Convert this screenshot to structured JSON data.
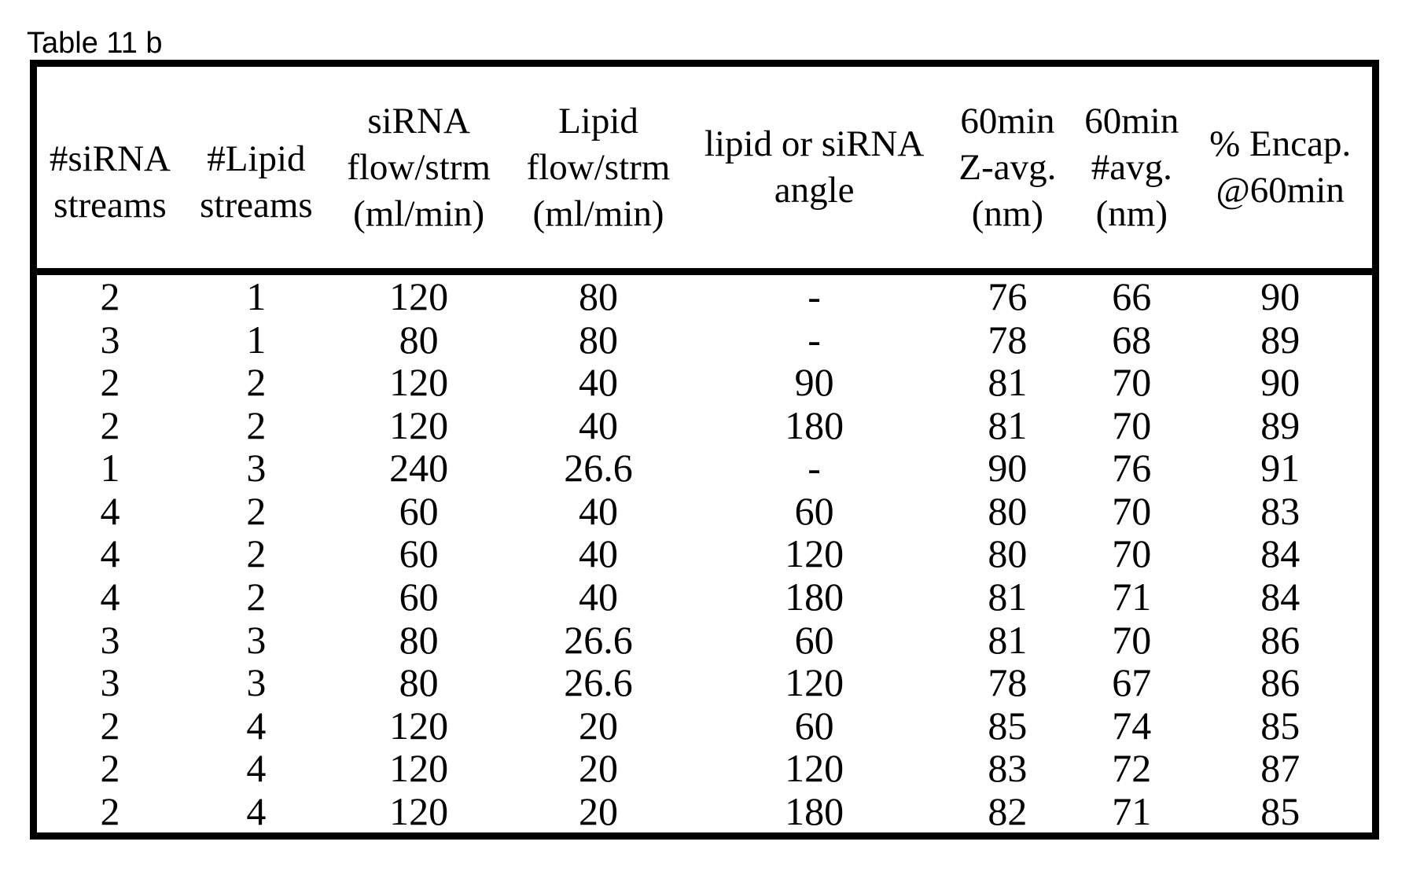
{
  "title": "Table 11 b",
  "table": {
    "headers": [
      "#siRNA\nstreams",
      "#Lipid\nstreams",
      "siRNA\nflow/strm\n(ml/min)",
      "Lipid\nflow/strm\n(ml/min)",
      "lipid or siRNA\nangle",
      "60min\nZ-avg.\n(nm)",
      "60min\n#avg.\n(nm)",
      "% Encap.\n@60min"
    ],
    "rows": [
      [
        "2",
        "1",
        "120",
        "80",
        "-",
        "76",
        "66",
        "90"
      ],
      [
        "3",
        "1",
        "80",
        "80",
        "-",
        "78",
        "68",
        "89"
      ],
      [
        "2",
        "2",
        "120",
        "40",
        "90",
        "81",
        "70",
        "90"
      ],
      [
        "2",
        "2",
        "120",
        "40",
        "180",
        "81",
        "70",
        "89"
      ],
      [
        "1",
        "3",
        "240",
        "26.6",
        "-",
        "90",
        "76",
        "91"
      ],
      [
        "4",
        "2",
        "60",
        "40",
        "60",
        "80",
        "70",
        "83"
      ],
      [
        "4",
        "2",
        "60",
        "40",
        "120",
        "80",
        "70",
        "84"
      ],
      [
        "4",
        "2",
        "60",
        "40",
        "180",
        "81",
        "71",
        "84"
      ],
      [
        "3",
        "3",
        "80",
        "26.6",
        "60",
        "81",
        "70",
        "86"
      ],
      [
        "3",
        "3",
        "80",
        "26.6",
        "120",
        "78",
        "67",
        "86"
      ],
      [
        "2",
        "4",
        "120",
        "20",
        "60",
        "85",
        "74",
        "85"
      ],
      [
        "2",
        "4",
        "120",
        "20",
        "120",
        "83",
        "72",
        "87"
      ],
      [
        "2",
        "4",
        "120",
        "20",
        "180",
        "82",
        "71",
        "85"
      ]
    ]
  },
  "colors": {
    "text": "#000000",
    "background": "#ffffff",
    "border": "#000000"
  }
}
